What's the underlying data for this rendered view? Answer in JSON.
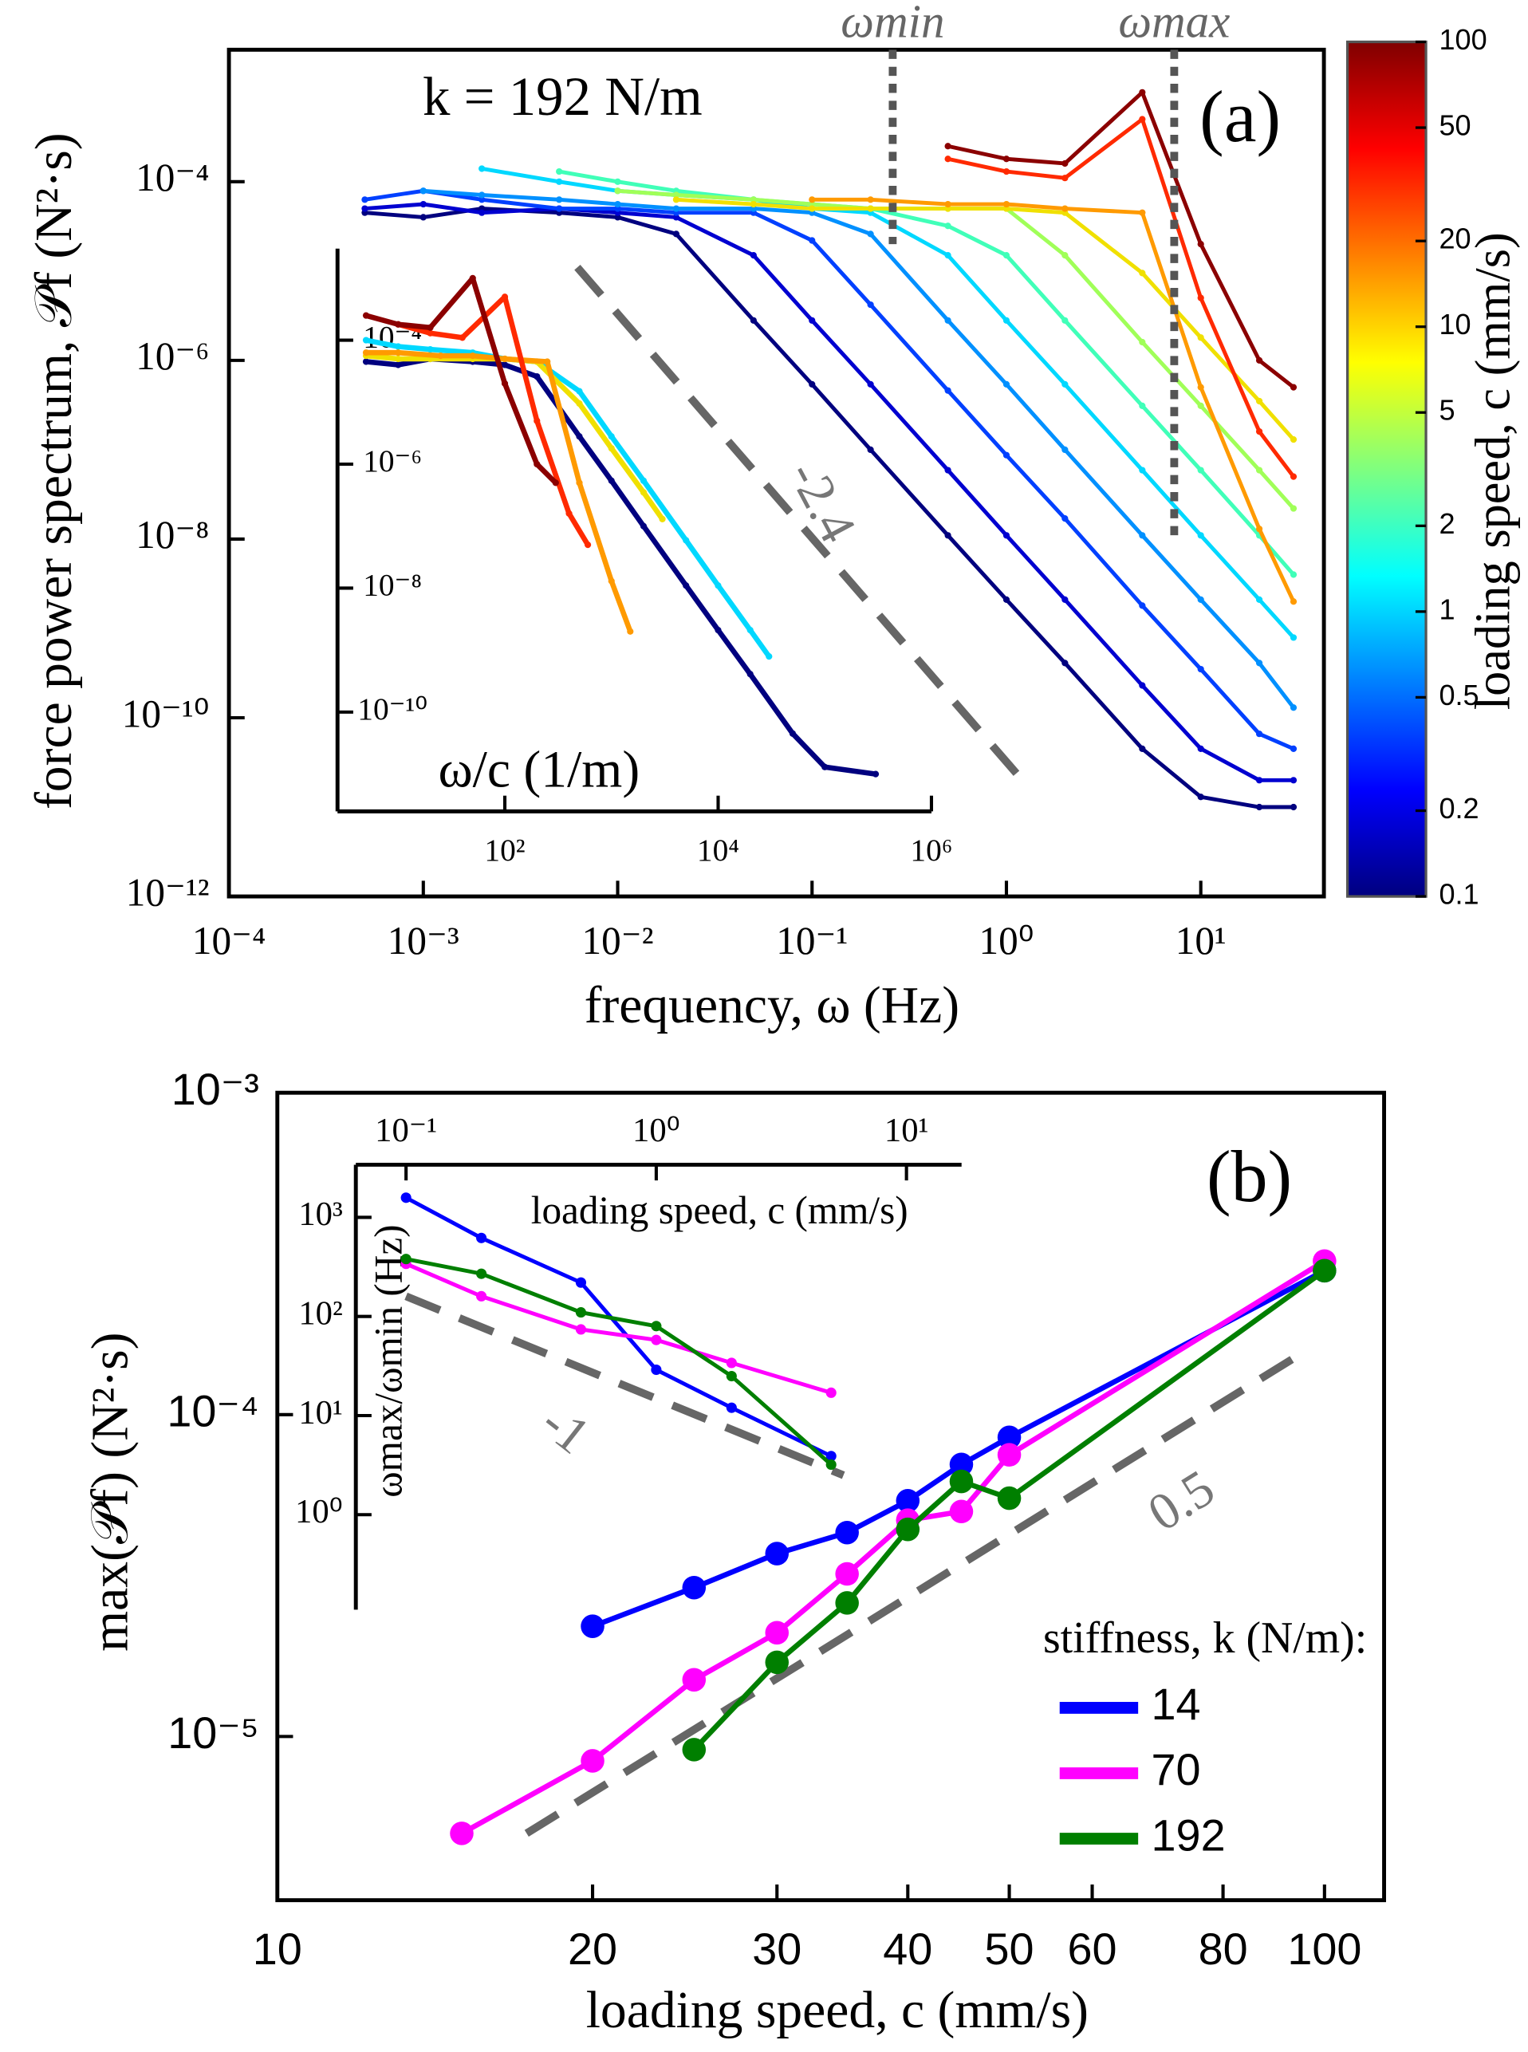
{
  "chart_data": [
    {
      "type": "line",
      "log_x": true,
      "log_y": true,
      "frame": "box",
      "subtitle": "k = 192 N/m",
      "panel_label": "(a)",
      "xlabel": "frequency, ω (Hz)",
      "ylabel": "force power spectrum, 𝒫f (N²·s)",
      "xlim": [
        0.0001,
        43
      ],
      "ylim": [
        1e-12,
        0.003
      ],
      "xticks": [
        {
          "value": 0.0001,
          "label": "10⁻⁴"
        },
        {
          "value": 0.001,
          "label": "10⁻³"
        },
        {
          "value": 0.01,
          "label": "10⁻²"
        },
        {
          "value": 0.1,
          "label": "10⁻¹"
        },
        {
          "value": 1,
          "label": "10⁰"
        },
        {
          "value": 10,
          "label": "10¹"
        }
      ],
      "yticks": [
        {
          "value": 1e-12,
          "label": "10⁻¹²"
        },
        {
          "value": 1e-10,
          "label": "10⁻¹⁰"
        },
        {
          "value": 1e-08,
          "label": "10⁻⁸"
        },
        {
          "value": 1e-06,
          "label": "10⁻⁶"
        },
        {
          "value": 0.0001,
          "label": "10⁻⁴"
        }
      ],
      "x": [
        0.0005,
        0.001,
        0.002,
        0.005,
        0.01,
        0.02,
        0.05,
        0.1,
        0.2,
        0.5,
        1,
        2,
        5,
        10,
        20,
        30
      ],
      "series": [
        {
          "color": "#00007f",
          "values": [
            4.5e-05,
            4e-05,
            5e-05,
            4.5e-05,
            4e-05,
            2.6e-05,
            2.8e-06,
            5.4e-07,
            1e-07,
            1.1e-08,
            2.1e-09,
            4.1e-10,
            4.5e-11,
            1.3e-11,
            1e-11,
            1e-11
          ]
        },
        {
          "color": "#0000d0",
          "values": [
            5e-05,
            5.6e-05,
            4.5e-05,
            5e-05,
            4.5e-05,
            4e-05,
            1.5e-05,
            2.8e-06,
            5.4e-07,
            5.9e-08,
            1.1e-08,
            2.1e-09,
            2.3e-10,
            4.5e-11,
            2e-11,
            2e-11
          ]
        },
        {
          "color": "#0040ff",
          "values": [
            6.3e-05,
            7.9e-05,
            6.3e-05,
            5e-05,
            5e-05,
            4.5e-05,
            4.5e-05,
            2.2e-05,
            4.2e-06,
            4.6e-07,
            8.7e-08,
            1.7e-08,
            1.8e-09,
            3.5e-10,
            6.6e-11,
            4.5e-11
          ]
        },
        {
          "color": "#0090ff",
          "values": [
            null,
            7.9e-05,
            7.1e-05,
            6.3e-05,
            5.6e-05,
            5e-05,
            5e-05,
            4.5e-05,
            2.6e-05,
            2.8e-06,
            5.4e-07,
            1e-07,
            1.1e-08,
            2.1e-09,
            4.1e-10,
            1.3e-10
          ]
        },
        {
          "color": "#00d8ff",
          "values": [
            null,
            null,
            0.00014,
            0.0001,
            7.9e-05,
            7.1e-05,
            6.3e-05,
            5e-05,
            4.5e-05,
            1.5e-05,
            2.8e-06,
            5.4e-07,
            5.9e-08,
            1.1e-08,
            2.1e-09,
            7.9e-10
          ]
        },
        {
          "color": "#40ffb8",
          "values": [
            null,
            null,
            null,
            0.00013,
            0.0001,
            7.9e-05,
            6.3e-05,
            5.6e-05,
            5e-05,
            3.2e-05,
            1.5e-05,
            2.8e-06,
            3.1e-07,
            5.9e-08,
            1.1e-08,
            4e-09
          ]
        },
        {
          "color": "#a0ff58",
          "values": [
            null,
            null,
            null,
            null,
            7.9e-05,
            7.1e-05,
            6.3e-05,
            5.6e-05,
            5e-05,
            5e-05,
            5e-05,
            1.5e-05,
            1.6e-06,
            3.1e-07,
            5.9e-08,
            2.2e-08
          ]
        },
        {
          "color": "#f0e000",
          "values": [
            null,
            null,
            null,
            null,
            null,
            6.3e-05,
            5.6e-05,
            5e-05,
            5e-05,
            5e-05,
            5e-05,
            4.5e-05,
            9.5e-06,
            1.8e-06,
            3.5e-07,
            1.3e-07
          ]
        },
        {
          "color": "#ff9a00",
          "values": [
            null,
            null,
            null,
            null,
            null,
            null,
            null,
            6.3e-05,
            6.3e-05,
            5.6e-05,
            5.6e-05,
            5e-05,
            4.5e-05,
            5e-07,
            1.3e-08,
            2e-09
          ]
        },
        {
          "color": "#ff2a00",
          "values": [
            null,
            null,
            null,
            null,
            null,
            null,
            null,
            null,
            null,
            0.00018,
            0.00013,
            0.00011,
            0.0005,
            5e-06,
            1.6e-07,
            5e-08
          ]
        },
        {
          "color": "#8b0000",
          "values": [
            null,
            null,
            null,
            null,
            null,
            null,
            null,
            null,
            null,
            0.00025,
            0.00018,
            0.00016,
            0.001,
            2e-05,
            1e-06,
            5e-07
          ]
        }
      ],
      "guide": {
        "x": [
          0.0062,
          1.32
        ],
        "values": [
          1.1e-05,
          1.6e-11
        ],
        "label": "-2.4"
      },
      "vlines": [
        {
          "x": 0.26,
          "y": 2e-05,
          "label": "ωmin"
        },
        {
          "x": 7.3,
          "y": 1e-08,
          "label": "ωmax"
        }
      ],
      "colorbar": {
        "label": "loading speed, c (mm/s)",
        "lim": [
          0.1,
          100
        ],
        "ticks": [
          0.1,
          0.2,
          0.5,
          1,
          2,
          5,
          10,
          20,
          50,
          100
        ],
        "colors": [
          "#00007f",
          "#0000ff",
          "#007fff",
          "#00ffff",
          "#7fff7f",
          "#ffff00",
          "#ff7f00",
          "#ff0000",
          "#7f0000"
        ]
      }
    },
    {
      "type": "line",
      "log_x": true,
      "log_y": true,
      "frame": "left-bottom",
      "xlabel": "ω/c (1/m)",
      "xlim": [
        2.7,
        1000000
      ],
      "ylim": [
        2.5e-12,
        0.003
      ],
      "xticks": [
        {
          "value": 100,
          "label": "10²"
        },
        {
          "value": 10000,
          "label": "10⁴"
        },
        {
          "value": 1000000,
          "label": "10⁶"
        }
      ],
      "yticks": [
        {
          "value": 1e-10,
          "label": "10⁻¹⁰"
        },
        {
          "value": 1e-08,
          "label": "10⁻⁸"
        },
        {
          "value": 1e-06,
          "label": "10⁻⁶"
        },
        {
          "value": 0.0001,
          "label": "10⁻⁴"
        }
      ],
      "series": [
        {
          "color": "#00007f",
          "x": [
            5,
            10,
            20,
            50,
            100,
            200,
            500,
            1000,
            2000,
            5000,
            10000,
            20000,
            50000,
            100000,
            300000
          ],
          "values": [
            4.5e-05,
            4e-05,
            5e-05,
            4.5e-05,
            4e-05,
            2.6e-05,
            2.8e-06,
            5.4e-07,
            1e-07,
            1.1e-08,
            2.1e-09,
            4.1e-10,
            4.5e-11,
            1.3e-11,
            1e-11
          ]
        },
        {
          "color": "#00d8ff",
          "x": [
            5,
            10,
            20,
            50,
            100,
            200,
            500,
            1000,
            2000,
            5000,
            10000,
            20000,
            30000
          ],
          "values": [
            0.0001,
            7.9e-05,
            7.1e-05,
            6.3e-05,
            5e-05,
            4.5e-05,
            1.5e-05,
            2.8e-06,
            5.4e-07,
            5.9e-08,
            1.1e-08,
            2.1e-09,
            7.9e-10
          ]
        },
        {
          "color": "#f0e000",
          "x": [
            5,
            10,
            20,
            50,
            100,
            200,
            500,
            1000,
            2000,
            3000
          ],
          "values": [
            5.6e-05,
            5e-05,
            5e-05,
            5e-05,
            5e-05,
            4.5e-05,
            9.5e-06,
            1.8e-06,
            3.5e-07,
            1.3e-07
          ]
        },
        {
          "color": "#ff9a00",
          "x": [
            5,
            10,
            25,
            50,
            100,
            250,
            500,
            1000,
            1500
          ],
          "values": [
            6.3e-05,
            6.3e-05,
            5.6e-05,
            5.6e-05,
            5e-05,
            4.5e-05,
            5e-07,
            1.3e-08,
            2e-09
          ]
        },
        {
          "color": "#ff2a00",
          "x": [
            10,
            20,
            40,
            100,
            200,
            400,
            600
          ],
          "values": [
            0.00018,
            0.00013,
            0.00011,
            0.0005,
            5e-06,
            1.6e-07,
            5e-08
          ]
        },
        {
          "color": "#8b0000",
          "x": [
            5,
            10,
            20,
            50,
            100,
            200,
            300
          ],
          "values": [
            0.00025,
            0.00018,
            0.00016,
            0.001,
            2e-05,
            1e-06,
            5e-07
          ]
        }
      ]
    },
    {
      "type": "line",
      "log_x": true,
      "log_y": true,
      "frame": "box",
      "markers": true,
      "panel_label": "(b)",
      "xlabel": "loading speed, c (mm/s)",
      "ylabel": "max(𝒫f) (N²·s)",
      "xlim": [
        10,
        114
      ],
      "ylim": [
        3.1e-06,
        0.001
      ],
      "xticks": [
        10,
        20,
        30,
        40,
        50,
        60,
        80,
        100
      ],
      "yticks": [
        {
          "value": 1e-05,
          "label": "10⁻⁵"
        },
        {
          "value": 0.0001,
          "label": "10⁻⁴"
        },
        {
          "value": 0.001,
          "label": "10⁻³"
        }
      ],
      "legend": {
        "title": "stiffness, k (N/m):",
        "corner": "lower right"
      },
      "series": [
        {
          "name": "14",
          "color": "#0000ff",
          "x": [
            20,
            25,
            30,
            35,
            40,
            45,
            50,
            100
          ],
          "values": [
            2.2e-05,
            2.9e-05,
            3.7e-05,
            4.3e-05,
            5.4e-05,
            7e-05,
            8.5e-05,
            0.00028
          ]
        },
        {
          "name": "70",
          "color": "#ff00ff",
          "x": [
            15,
            20,
            25,
            30,
            35,
            40,
            45,
            50,
            100
          ],
          "values": [
            5e-06,
            8.4e-06,
            1.5e-05,
            2.1e-05,
            3.2e-05,
            4.7e-05,
            5e-05,
            7.5e-05,
            0.0003
          ]
        },
        {
          "name": "192",
          "color": "#007f00",
          "x": [
            25,
            30,
            35,
            40,
            45,
            50,
            100
          ],
          "values": [
            9.1e-06,
            1.7e-05,
            2.6e-05,
            4.4e-05,
            6.2e-05,
            5.5e-05,
            0.00028
          ]
        }
      ],
      "guide": {
        "x": [
          17.3,
          96.6
        ],
        "values": [
          5e-06,
          0.00016
        ],
        "label": "0.5"
      }
    },
    {
      "type": "line",
      "log_x": true,
      "log_y": true,
      "frame": "left-top",
      "markers": true,
      "xlabel": "loading speed, c (mm/s)",
      "ylabel": "ωmax/ωmin (Hz)",
      "xlim": [
        0.063,
        16.6
      ],
      "ylim": [
        0.11,
        3400
      ],
      "xticks": [
        {
          "value": 0.1,
          "label": "10⁻¹"
        },
        {
          "value": 1,
          "label": "10⁰"
        },
        {
          "value": 10,
          "label": "10¹"
        }
      ],
      "yticks": [
        {
          "value": 1,
          "label": "10⁰"
        },
        {
          "value": 10,
          "label": "10¹"
        },
        {
          "value": 100,
          "label": "10²"
        },
        {
          "value": 1000,
          "label": "10³"
        }
      ],
      "series": [
        {
          "color": "#0000ff",
          "x": [
            0.1,
            0.2,
            0.5,
            1,
            2,
            5
          ],
          "values": [
            1580,
            620,
            220,
            29,
            12,
            3.9
          ]
        },
        {
          "color": "#ff00ff",
          "x": [
            0.1,
            0.2,
            0.5,
            1,
            2,
            5
          ],
          "values": [
            340,
            160,
            74,
            58,
            34,
            17
          ]
        },
        {
          "color": "#007f00",
          "x": [
            0.1,
            0.2,
            0.5,
            1,
            2,
            5
          ],
          "values": [
            380,
            270,
            110,
            80,
            25,
            3.2
          ]
        }
      ],
      "guide": {
        "x": [
          0.1,
          5.6
        ],
        "values": [
          160,
          2.5
        ],
        "label": "-1"
      }
    }
  ]
}
